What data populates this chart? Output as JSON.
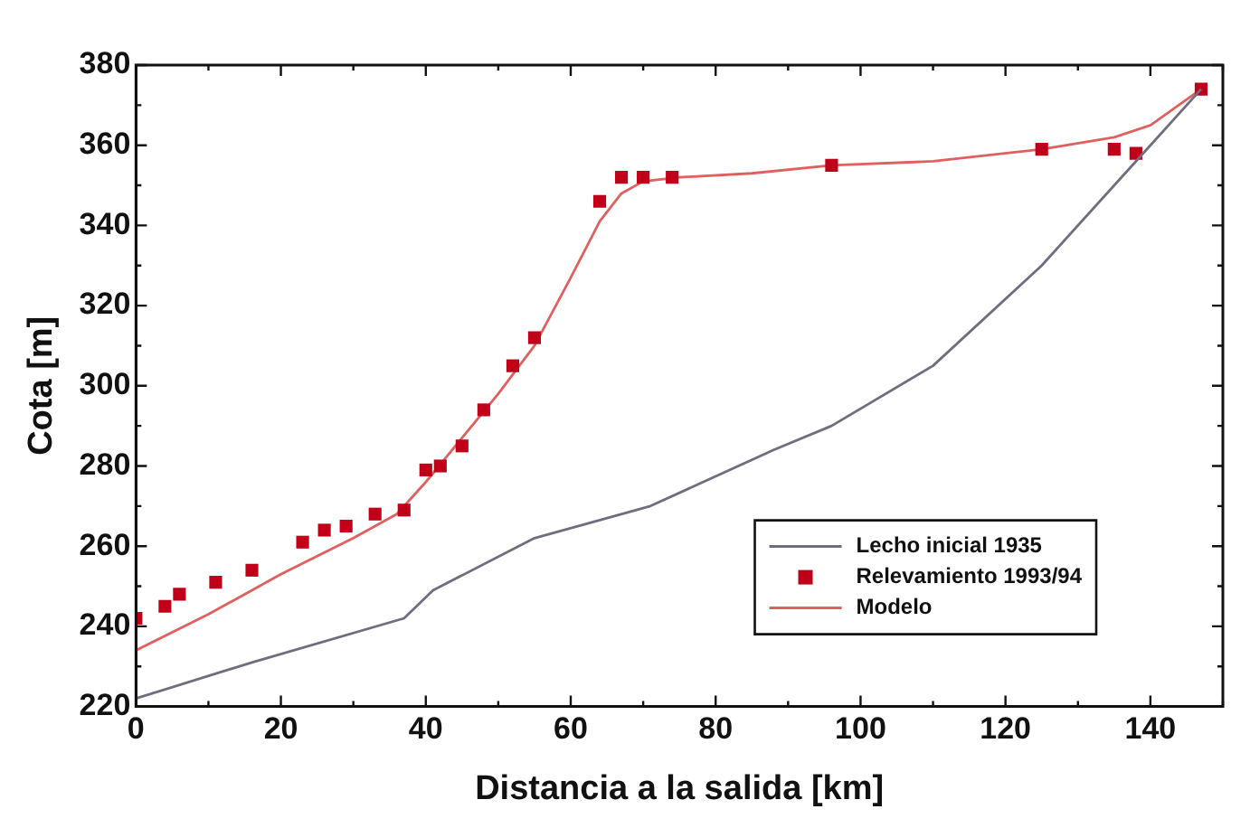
{
  "chart_data": {
    "type": "line",
    "xlabel": "Distancia a la salida [km]",
    "ylabel": "Cota [m]",
    "xlim": [
      0,
      150
    ],
    "xticks": [
      0,
      20,
      40,
      60,
      80,
      100,
      120,
      140
    ],
    "ylim": [
      220,
      380
    ],
    "yticks": [
      220,
      240,
      260,
      280,
      300,
      320,
      340,
      360,
      380
    ],
    "grid": false,
    "legend": "bottom right",
    "series": [
      {
        "name": "Lecho inicial 1935",
        "type": "line",
        "marker": "none",
        "color": "#6e6e7e",
        "x": [
          0,
          16,
          37,
          41,
          55,
          71,
          88,
          96,
          110,
          125,
          138,
          147
        ],
        "values": [
          222,
          231,
          242,
          249,
          262,
          270,
          284,
          290,
          305,
          330,
          356,
          374
        ]
      },
      {
        "name": "Relevamiento 1993/94",
        "type": "scatter",
        "marker": "square",
        "color": "#c00018",
        "x": [
          0,
          4,
          6,
          11,
          16,
          23,
          26,
          29,
          33,
          37,
          40,
          42,
          45,
          48,
          52,
          55,
          64,
          67,
          70,
          74,
          96,
          125,
          135,
          138,
          147
        ],
        "values": [
          242,
          245,
          248,
          251,
          254,
          261,
          264,
          265,
          268,
          269,
          279,
          280,
          285,
          294,
          305,
          312,
          346,
          352,
          352,
          352,
          355,
          359,
          359,
          358,
          374
        ]
      },
      {
        "name": "Modelo",
        "type": "line",
        "marker": "none",
        "color": "#e06060",
        "x": [
          0,
          10,
          20,
          30,
          36,
          40,
          45,
          50,
          55,
          60,
          64,
          67,
          70,
          75,
          85,
          96,
          110,
          125,
          135,
          140,
          147
        ],
        "values": [
          234,
          243,
          253,
          262,
          268,
          276,
          287,
          298,
          310,
          327,
          341,
          348,
          351,
          352,
          353,
          355,
          356,
          359,
          362,
          365,
          374
        ]
      }
    ]
  }
}
